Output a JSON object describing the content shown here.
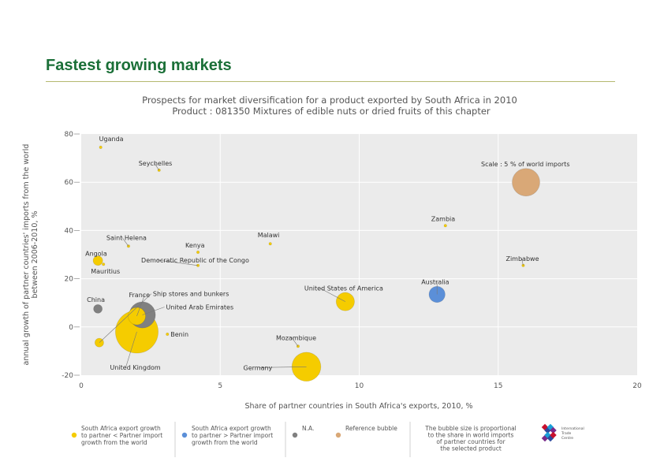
{
  "page": {
    "title": "Fastest growing markets"
  },
  "chart_data": {
    "type": "scatter",
    "title": "Prospects for market diversification for a product exported by South Africa in 2010",
    "subtitle": "Product : 081350 Mixtures of edible nuts or dried fruits of this chapter",
    "xlabel": "Share of partner countries in South Africa's exports, 2010, %",
    "ylabel_lines": [
      "annual growth of partner countries' imports from the world",
      "between 2006-2010, %"
    ],
    "xlim": [
      0,
      20
    ],
    "ylim": [
      -20,
      80
    ],
    "x_ticks": [
      0,
      5,
      10,
      15,
      20
    ],
    "y_ticks": [
      -20,
      0,
      20,
      40,
      60,
      80
    ],
    "y_tick_labels": [
      "-20",
      "0",
      "20",
      "40",
      "60",
      "80"
    ],
    "grid": true,
    "scale_note": "Scale : 5 % of world imports",
    "colors": {
      "lower": "#f5cc00",
      "higher": "#5b8fd8",
      "na": "#808080",
      "reference": "#d9a877",
      "plot_bg": "#ebebeb"
    },
    "points": [
      {
        "name": "Uganda",
        "x": 0.7,
        "y": 74.5,
        "type": "lower",
        "size": 0.05,
        "label_dx": -2,
        "label_dy": -8
      },
      {
        "name": "Seychelles",
        "x": 2.8,
        "y": 65,
        "type": "lower",
        "size": 0.05,
        "label_dx": -26,
        "label_dy": -6
      },
      {
        "name": "Saint Helena",
        "x": 1.7,
        "y": 33.5,
        "type": "lower",
        "size": 0.05,
        "label_dx": -28,
        "label_dy": -8
      },
      {
        "name": "Angola",
        "x": 0.6,
        "y": 27.5,
        "type": "lower",
        "size": 0.6,
        "label_dx": -16,
        "label_dy": -6
      },
      {
        "name": "Mauritius",
        "x": 0.8,
        "y": 26,
        "type": "lower",
        "size": 0.05,
        "label_dx": -16,
        "label_dy": 12
      },
      {
        "name": "Kenya",
        "x": 4.2,
        "y": 31,
        "type": "lower",
        "size": 0.05,
        "label_dx": -16,
        "label_dy": -6
      },
      {
        "name": "Democratic Republic of the Congo",
        "x": 4.2,
        "y": 25.5,
        "type": "lower",
        "size": 0.05,
        "label_dx": -72,
        "label_dy": -4
      },
      {
        "name": "Malawi",
        "x": 6.8,
        "y": 34.5,
        "type": "lower",
        "size": 0.05,
        "label_dx": -16,
        "label_dy": -8
      },
      {
        "name": "Zambia",
        "x": 13.1,
        "y": 42,
        "type": "lower",
        "size": 0.05,
        "label_dx": -18,
        "label_dy": -6
      },
      {
        "name": "Zimbabwe",
        "x": 15.9,
        "y": 25.5,
        "type": "lower",
        "size": 0.05,
        "label_dx": -22,
        "label_dy": -6
      },
      {
        "name": "United States of America",
        "x": 9.5,
        "y": 10.5,
        "type": "lower",
        "size": 2.2,
        "label_dx": -52,
        "label_dy": -14
      },
      {
        "name": "Australia",
        "x": 12.8,
        "y": 13.5,
        "type": "higher",
        "size": 1.7,
        "label_dx": -20,
        "label_dy": -13
      },
      {
        "name": "China",
        "x": 0.6,
        "y": 7.5,
        "type": "na",
        "size": 0.5,
        "label_dx": -14,
        "label_dy": -9
      },
      {
        "name": "Benin",
        "x": 3.1,
        "y": -3,
        "type": "lower",
        "size": 0.05,
        "label_dx": 4,
        "label_dy": 3
      },
      {
        "name": "Mozambique",
        "x": 7.8,
        "y": -8,
        "type": "lower",
        "size": 0.05,
        "label_dx": -28,
        "label_dy": -8
      },
      {
        "name": "Germany",
        "x": 8.1,
        "y": -16.5,
        "type": "lower",
        "size": 5.5,
        "label_dx": -80,
        "label_dy": 4
      },
      {
        "name": "Ship stores and bunkers",
        "x": 0.65,
        "y": -6.5,
        "type": "lower",
        "size": 0.5,
        "label_dx": 68,
        "label_dy": -59
      },
      {
        "name": "United Kingdom",
        "x": 2.0,
        "y": -2,
        "type": "lower",
        "size": 12,
        "label_dx": -34,
        "label_dy": 48
      },
      {
        "name": "France",
        "x": 2.0,
        "y": 4.5,
        "type": "lower",
        "size": 2,
        "label_dx": -10,
        "label_dy": -24
      },
      {
        "name": "United Arab Emirates",
        "x": 2.2,
        "y": 5,
        "type": "na",
        "size": 4.5,
        "label_dx": 30,
        "label_dy": -7
      },
      {
        "name": "",
        "x": 16.0,
        "y": 60,
        "type": "reference",
        "size": 5,
        "label_dx": 0,
        "label_dy": 0
      }
    ],
    "legend": [
      {
        "color_key": "lower",
        "lines": [
          "South Africa export growth",
          "to partner < Partner import",
          "growth from the world"
        ]
      },
      {
        "color_key": "higher",
        "lines": [
          "South Africa export growth",
          "to partner > Partner import",
          "growth from the world"
        ]
      },
      {
        "color_key": "na",
        "lines": [
          "N.A."
        ]
      },
      {
        "color_key": "reference",
        "lines": [
          "Reference bubble"
        ]
      }
    ],
    "bubble_note": [
      "The bubble size is proportional",
      "to the share in world imports",
      "of partner countries for",
      "the selected product"
    ],
    "logo_text": [
      "International",
      "Trade",
      "Centre"
    ]
  }
}
